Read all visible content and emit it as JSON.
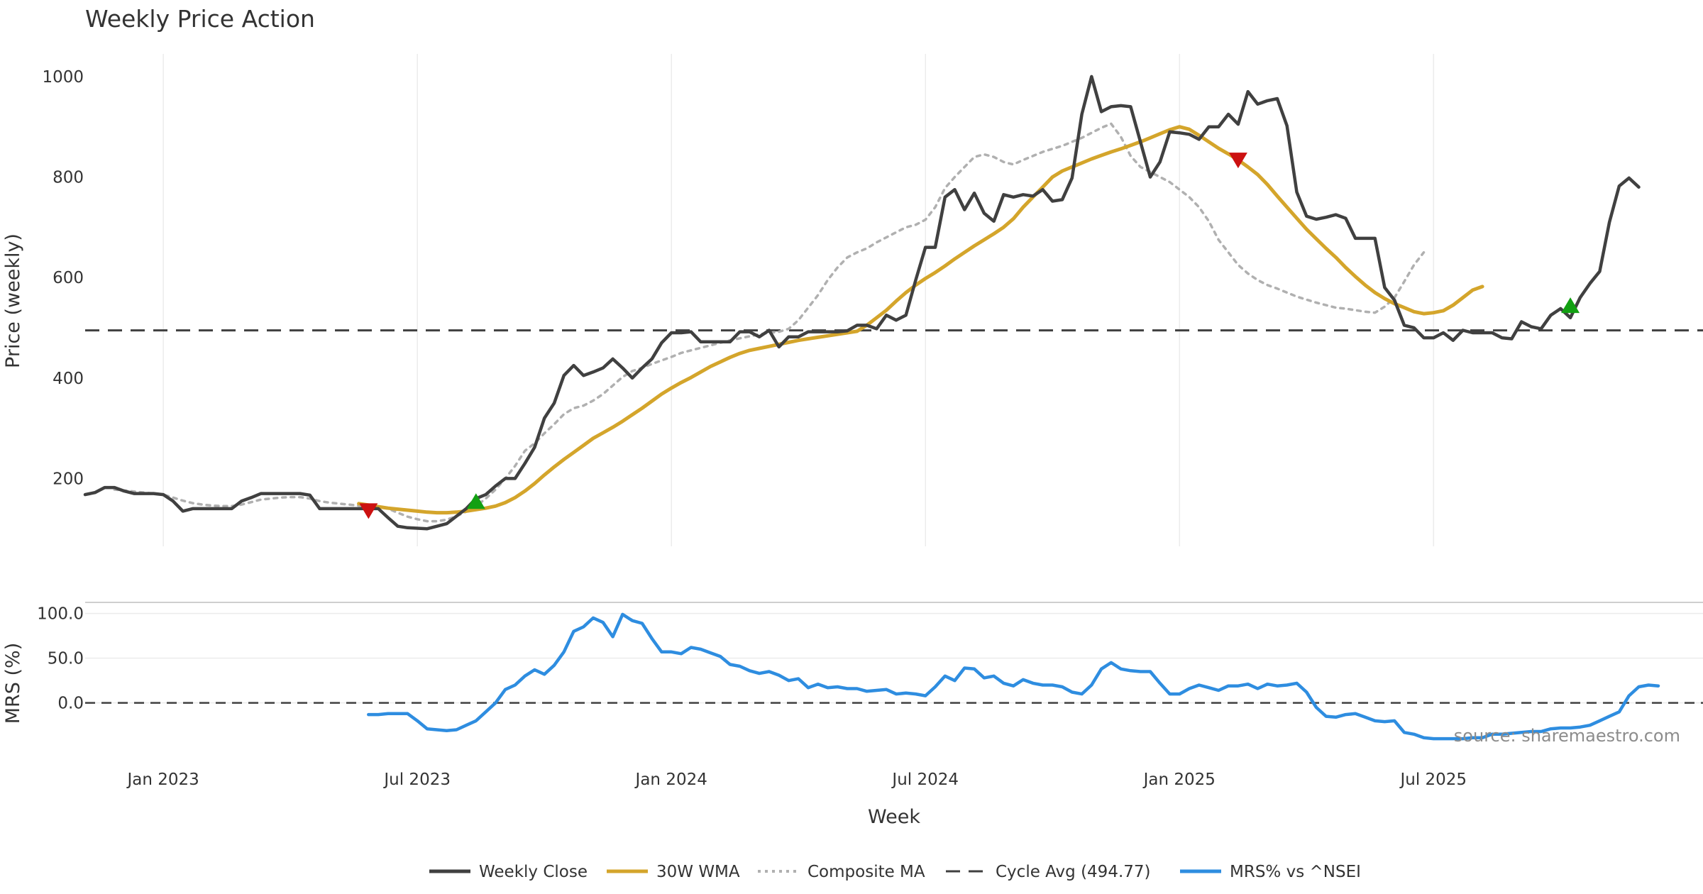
{
  "chart_data": {
    "type": "line",
    "title": "Weekly Price Action",
    "source_note": "source: sharemaestro.com",
    "xlabel": "Week",
    "x_ticks": [
      "Jan 2023",
      "Jul 2023",
      "Jan 2024",
      "Jul 2024",
      "Jan 2025",
      "Jul 2025"
    ],
    "x_tick_weeks": [
      8,
      34,
      60,
      86,
      112,
      138
    ],
    "grid": true,
    "legend_position": "bottom-center",
    "price_panel": {
      "ylabel": "Price (weekly)",
      "y_ticks": [
        200,
        400,
        600,
        800,
        1000
      ],
      "ylim": [
        65,
        1045
      ],
      "cycle_avg": 494.77
    },
    "mrs_panel": {
      "ylabel": "MRS (%)",
      "y_ticks": [
        "0.0",
        "50.0",
        "100.0"
      ],
      "y_tick_values": [
        0,
        50,
        100
      ],
      "ylim": [
        -55,
        110
      ],
      "zero_line": 0
    },
    "series": [
      {
        "name": "Weekly Close",
        "color": "#404040",
        "style": "solid",
        "start_week": 0,
        "values": [
          168,
          172,
          182,
          182,
          175,
          170,
          170,
          170,
          168,
          155,
          135,
          140,
          140,
          140,
          140,
          140,
          155,
          162,
          170,
          170,
          170,
          170,
          170,
          167,
          140,
          140,
          140,
          140,
          140,
          140,
          140,
          122,
          105,
          102,
          101,
          100,
          105,
          110,
          125,
          140,
          160,
          168,
          185,
          200,
          200,
          230,
          262,
          320,
          350,
          405,
          425,
          405,
          412,
          420,
          438,
          420,
          400,
          420,
          438,
          470,
          490,
          490,
          492,
          472,
          472,
          472,
          472,
          492,
          492,
          482,
          495,
          462,
          482,
          482,
          492,
          492,
          492,
          492,
          494,
          505,
          505,
          498,
          525,
          515,
          525,
          595,
          660,
          660,
          760,
          775,
          735,
          768,
          728,
          712,
          765,
          760,
          765,
          762,
          775,
          752,
          755,
          798,
          925,
          1000,
          930,
          940,
          942,
          940,
          870,
          800,
          830,
          890,
          888,
          885,
          875,
          900,
          900,
          925,
          905,
          970,
          945,
          952,
          956,
          902,
          770,
          722,
          716,
          720,
          725,
          718,
          678,
          678,
          678,
          580,
          555,
          505,
          500,
          480,
          480,
          490,
          475,
          495,
          490,
          490,
          490,
          480,
          478,
          512,
          502,
          498,
          525,
          538,
          520,
          560,
          588,
          612,
          710,
          782,
          798,
          780
        ]
      },
      {
        "name": "30W WMA",
        "color": "#d4a52b",
        "style": "solid",
        "start_week": 28,
        "values": [
          150,
          147,
          144,
          141,
          139,
          137,
          135,
          133,
          132,
          132,
          133,
          135,
          138,
          141,
          145,
          152,
          162,
          175,
          190,
          207,
          223,
          238,
          252,
          266,
          280,
          291,
          302,
          314,
          327,
          340,
          354,
          368,
          380,
          391,
          401,
          412,
          423,
          432,
          441,
          449,
          455,
          459,
          463,
          467,
          471,
          475,
          478,
          481,
          484,
          487,
          490,
          493,
          505,
          520,
          535,
          553,
          570,
          585,
          598,
          610,
          623,
          637,
          650,
          663,
          675,
          687,
          700,
          717,
          740,
          760,
          780,
          800,
          812,
          820,
          828,
          836,
          843,
          850,
          856,
          863,
          870,
          878,
          886,
          894,
          900,
          895,
          883,
          870,
          857,
          846,
          834,
          820,
          805,
          785,
          762,
          740,
          718,
          696,
          677,
          658,
          640,
          620,
          602,
          585,
          570,
          558,
          548,
          540,
          532,
          528,
          530,
          534,
          545,
          560,
          575,
          582
        ]
      },
      {
        "name": "Composite MA",
        "color": "#b0b0b0",
        "style": "dotted",
        "start_week": 3,
        "values": [
          178,
          176,
          174,
          172,
          170,
          168,
          162,
          156,
          151,
          148,
          146,
          145,
          145,
          148,
          153,
          158,
          160,
          162,
          163,
          163,
          160,
          155,
          152,
          150,
          148,
          146,
          145,
          143,
          140,
          132,
          124,
          119,
          115,
          115,
          118,
          125,
          134,
          145,
          160,
          178,
          200,
          225,
          255,
          270,
          290,
          308,
          328,
          340,
          345,
          355,
          368,
          385,
          402,
          414,
          420,
          428,
          435,
          442,
          450,
          455,
          460,
          465,
          470,
          475,
          479,
          483,
          487,
          490,
          492,
          498,
          515,
          540,
          565,
          595,
          620,
          640,
          650,
          658,
          670,
          680,
          690,
          700,
          705,
          715,
          740,
          778,
          800,
          820,
          840,
          845,
          840,
          830,
          825,
          834,
          842,
          850,
          856,
          862,
          870,
          878,
          888,
          898,
          906,
          880,
          842,
          820,
          810,
          800,
          790,
          775,
          760,
          740,
          712,
          675,
          650,
          625,
          608,
          595,
          585,
          578,
          570,
          562,
          556,
          550,
          545,
          540,
          538,
          535,
          532,
          530,
          542,
          560,
          592,
          625,
          650
        ]
      },
      {
        "name": "Cycle Avg (494.77)",
        "color": "#404040",
        "style": "dashed",
        "constant": 494.77
      },
      {
        "name": "MRS% vs ^NSEI",
        "color": "#2e8de0",
        "style": "solid",
        "panel": "mrs",
        "start_week": 29,
        "values": [
          -13,
          -13,
          -12,
          -12,
          -12,
          -20,
          -29,
          -30,
          -31,
          -30,
          -25,
          -20,
          -10,
          0,
          15,
          20,
          30,
          37,
          32,
          42,
          57,
          80,
          85,
          95,
          90,
          74,
          99,
          92,
          89,
          72,
          57,
          57,
          55,
          62,
          60,
          56,
          52,
          43,
          41,
          36,
          33,
          35,
          31,
          25,
          27,
          17,
          21,
          17,
          18,
          16,
          16,
          13,
          14,
          15,
          10,
          11,
          10,
          8,
          18,
          30,
          25,
          39,
          38,
          28,
          30,
          22,
          19,
          26,
          22,
          20,
          20,
          18,
          12,
          10,
          20,
          38,
          45,
          38,
          36,
          35,
          35,
          22,
          10,
          10,
          16,
          20,
          17,
          14,
          19,
          19,
          21,
          16,
          21,
          19,
          20,
          22,
          12,
          -5,
          -15,
          -16,
          -13,
          -12,
          -16,
          -20,
          -21,
          -20,
          -33,
          -35,
          -39,
          -40,
          -40,
          -40,
          -40,
          -39,
          -39,
          -35,
          -35,
          -34,
          -33,
          -32,
          -32,
          -29,
          -28,
          -28,
          -27,
          -25,
          -20,
          -15,
          -10,
          8,
          18,
          20,
          19
        ]
      }
    ],
    "signals": {
      "sell": [
        {
          "week": 29,
          "price": 135
        },
        {
          "week": 118,
          "price": 833
        }
      ],
      "buy": [
        {
          "week": 40,
          "price": 155
        },
        {
          "week": 152,
          "price": 545
        }
      ]
    }
  }
}
